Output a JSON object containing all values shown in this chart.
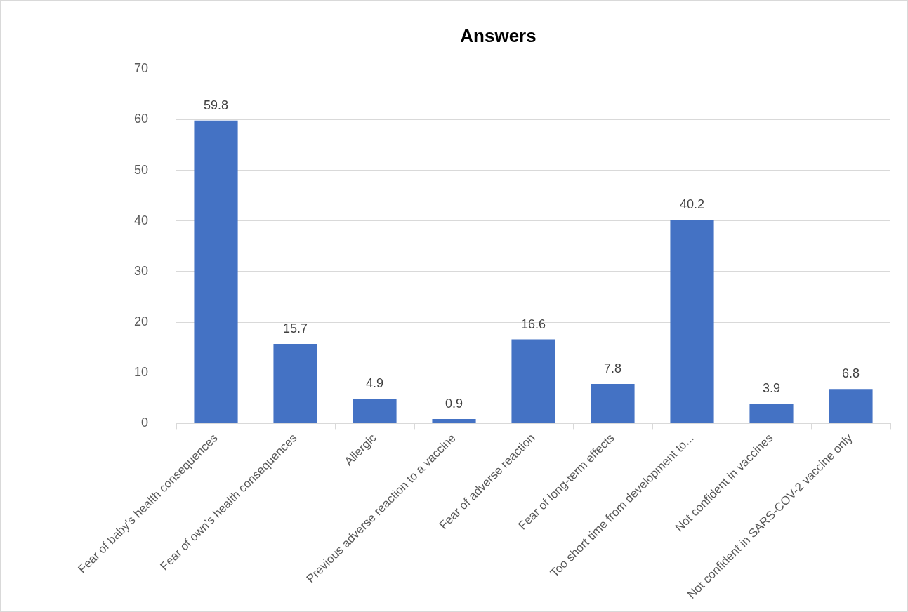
{
  "chart_data": {
    "type": "bar",
    "title": "Answers",
    "categories": [
      "Fear of baby's health consequences",
      "Fear of own's health consequences",
      "Allergic",
      "Previous adverse reaction to a vaccine",
      "Fear of adverse reaction",
      "Fear of long-term effects",
      "Too short time from development to...",
      "Not confident in vaccines",
      "Not confident in SARS-COV-2 vaccine only"
    ],
    "values": [
      59.8,
      15.7,
      4.9,
      0.9,
      16.6,
      7.8,
      40.2,
      3.9,
      6.8
    ],
    "color": "#4472c4",
    "ylim": [
      0,
      70
    ],
    "yticks": [
      0,
      10,
      20,
      30,
      40,
      50,
      60,
      70
    ],
    "grid": "y",
    "data_labels": true
  }
}
